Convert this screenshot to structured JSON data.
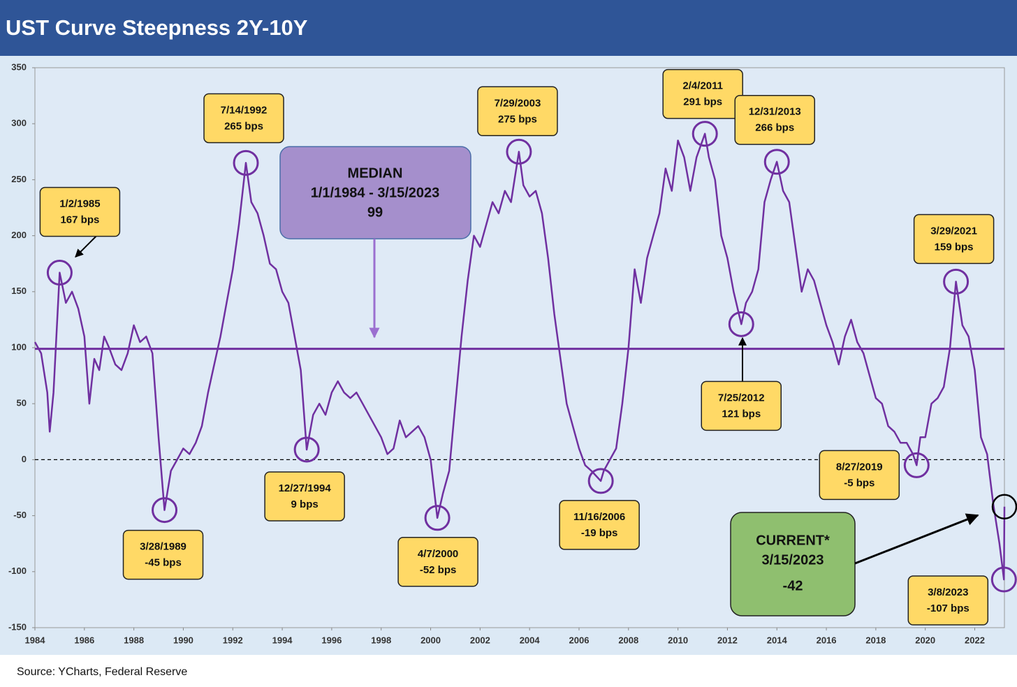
{
  "chart_data": {
    "type": "line",
    "title": "UST Curve Steepness 2Y-10Y",
    "source": "Source: YCharts, Federal Reserve",
    "color": "#7030a0",
    "x": [
      1984.0,
      1984.25,
      1984.5,
      1984.6,
      1984.75,
      1985.0,
      1985.25,
      1985.5,
      1985.75,
      1986.0,
      1986.2,
      1986.4,
      1986.6,
      1986.8,
      1987.0,
      1987.25,
      1987.5,
      1987.75,
      1988.0,
      1988.25,
      1988.5,
      1988.75,
      1989.0,
      1989.24,
      1989.5,
      1989.75,
      1990.0,
      1990.25,
      1990.5,
      1990.75,
      1991.0,
      1991.25,
      1991.5,
      1991.75,
      1992.0,
      1992.25,
      1992.53,
      1992.75,
      1993.0,
      1993.25,
      1993.5,
      1993.75,
      1994.0,
      1994.25,
      1994.5,
      1994.75,
      1994.99,
      1995.25,
      1995.5,
      1995.75,
      1996.0,
      1996.25,
      1996.5,
      1996.75,
      1997.0,
      1997.25,
      1997.5,
      1997.75,
      1998.0,
      1998.25,
      1998.5,
      1998.75,
      1999.0,
      1999.25,
      1999.5,
      1999.75,
      2000.0,
      2000.27,
      2000.5,
      2000.75,
      2001.0,
      2001.25,
      2001.5,
      2001.75,
      2002.0,
      2002.25,
      2002.5,
      2002.75,
      2003.0,
      2003.25,
      2003.57,
      2003.75,
      2004.0,
      2004.25,
      2004.5,
      2004.75,
      2005.0,
      2005.25,
      2005.5,
      2005.75,
      2006.0,
      2006.25,
      2006.5,
      2006.88,
      2007.0,
      2007.25,
      2007.5,
      2007.75,
      2008.0,
      2008.25,
      2008.5,
      2008.75,
      2009.0,
      2009.25,
      2009.5,
      2009.75,
      2010.0,
      2010.25,
      2010.5,
      2010.75,
      2011.09,
      2011.25,
      2011.5,
      2011.75,
      2012.0,
      2012.25,
      2012.56,
      2012.75,
      2013.0,
      2013.25,
      2013.5,
      2013.75,
      2014.0,
      2014.25,
      2014.5,
      2014.75,
      2015.0,
      2015.25,
      2015.5,
      2015.75,
      2016.0,
      2016.25,
      2016.5,
      2016.75,
      2017.0,
      2017.25,
      2017.5,
      2017.75,
      2018.0,
      2018.25,
      2018.5,
      2018.75,
      2019.0,
      2019.25,
      2019.5,
      2019.65,
      2019.8,
      2020.0,
      2020.25,
      2020.5,
      2020.75,
      2021.0,
      2021.24,
      2021.5,
      2021.75,
      2022.0,
      2022.25,
      2022.5,
      2022.75,
      2023.0,
      2023.18,
      2023.2
    ],
    "values": [
      105,
      95,
      60,
      25,
      60,
      167,
      140,
      150,
      135,
      110,
      50,
      90,
      80,
      110,
      100,
      85,
      80,
      95,
      120,
      105,
      110,
      95,
      20,
      -45,
      -10,
      0,
      10,
      5,
      15,
      30,
      60,
      85,
      110,
      140,
      170,
      210,
      265,
      230,
      220,
      200,
      175,
      170,
      150,
      140,
      110,
      80,
      9,
      40,
      50,
      40,
      60,
      70,
      60,
      55,
      60,
      50,
      40,
      30,
      20,
      5,
      10,
      35,
      20,
      25,
      30,
      20,
      0,
      -52,
      -30,
      -10,
      50,
      110,
      160,
      200,
      190,
      210,
      230,
      220,
      240,
      230,
      275,
      245,
      235,
      240,
      220,
      180,
      130,
      90,
      50,
      30,
      10,
      -5,
      -10,
      -19,
      -10,
      0,
      10,
      50,
      100,
      170,
      140,
      180,
      200,
      220,
      260,
      240,
      285,
      270,
      240,
      270,
      291,
      270,
      250,
      200,
      180,
      150,
      121,
      140,
      150,
      170,
      230,
      250,
      266,
      240,
      230,
      190,
      150,
      170,
      160,
      140,
      120,
      105,
      85,
      110,
      125,
      105,
      95,
      75,
      55,
      50,
      30,
      25,
      15,
      15,
      5,
      -5,
      20,
      20,
      50,
      55,
      65,
      100,
      159,
      120,
      110,
      80,
      20,
      5,
      -40,
      -75,
      -107,
      -42
    ],
    "xlim": [
      1984,
      2023.2
    ],
    "xticks": [
      1984,
      1986,
      1988,
      1990,
      1992,
      1994,
      1996,
      1998,
      2000,
      2002,
      2004,
      2006,
      2008,
      2010,
      2012,
      2014,
      2016,
      2018,
      2020,
      2022
    ],
    "ylim": [
      -150,
      350
    ],
    "yticks": [
      350,
      300,
      250,
      200,
      150,
      100,
      50,
      0,
      -50,
      -100,
      -150
    ],
    "median": {
      "title": "MEDIAN",
      "range": "1/1/1984 - 3/15/2023",
      "value": 99
    },
    "current": {
      "title": "CURRENT*",
      "date": "3/15/2023",
      "value": -42,
      "x": 2023.2
    },
    "annotations": [
      {
        "date": "1/2/1985",
        "label": "167 bps",
        "x": 1985.0,
        "y": 167
      },
      {
        "date": "7/14/1992",
        "label": "265 bps",
        "x": 1992.53,
        "y": 265
      },
      {
        "date": "3/28/1989",
        "label": "-45 bps",
        "x": 1989.24,
        "y": -45
      },
      {
        "date": "12/27/1994",
        "label": "9 bps",
        "x": 1994.99,
        "y": 9
      },
      {
        "date": "7/29/2003",
        "label": "275 bps",
        "x": 2003.57,
        "y": 275
      },
      {
        "date": "4/7/2000",
        "label": "-52 bps",
        "x": 2000.27,
        "y": -52
      },
      {
        "date": "11/16/2006",
        "label": "-19 bps",
        "x": 2006.88,
        "y": -19
      },
      {
        "date": "2/4/2011",
        "label": "291 bps",
        "x": 2011.09,
        "y": 291
      },
      {
        "date": "12/31/2013",
        "label": "266 bps",
        "x": 2014.0,
        "y": 266
      },
      {
        "date": "7/25/2012",
        "label": "121 bps",
        "x": 2012.56,
        "y": 121
      },
      {
        "date": "3/29/2021",
        "label": "159 bps",
        "x": 2021.24,
        "y": 159
      },
      {
        "date": "8/27/2019",
        "label": "-5 bps",
        "x": 2019.65,
        "y": -5
      },
      {
        "date": "3/8/2023",
        "label": "-107 bps",
        "x": 2023.18,
        "y": -107
      }
    ]
  }
}
